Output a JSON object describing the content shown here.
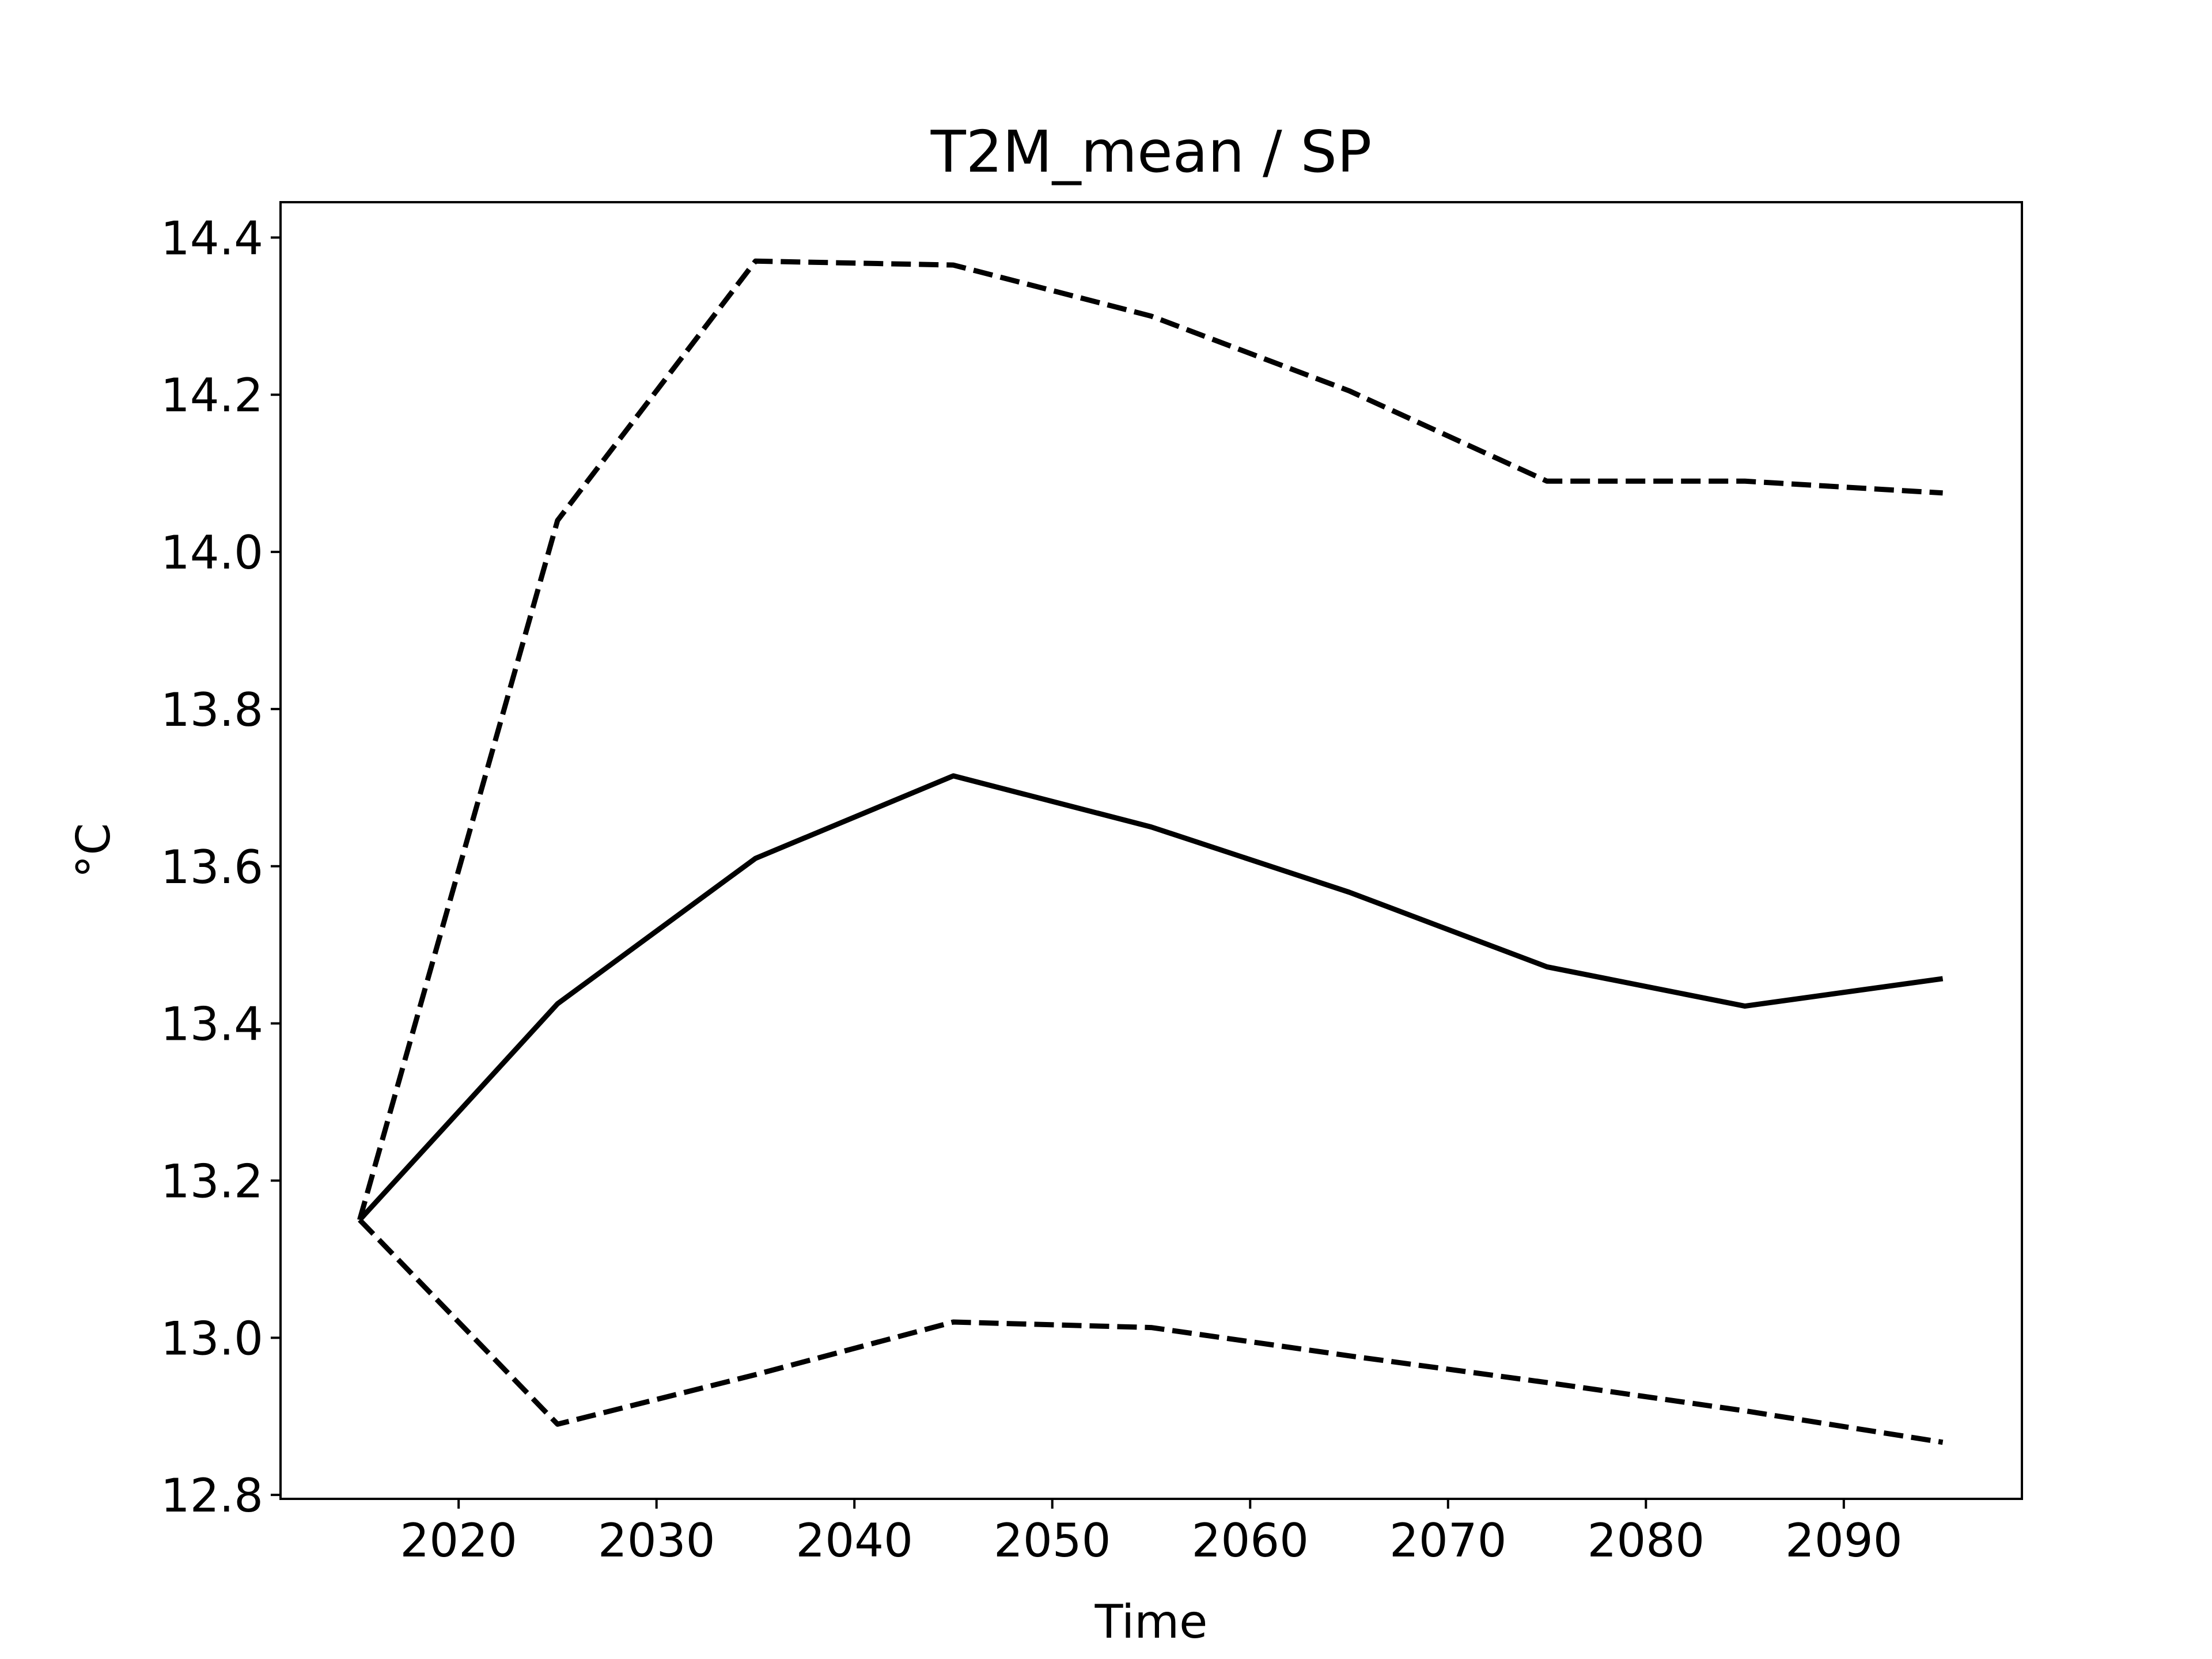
{
  "chart_data": {
    "type": "line",
    "title": "T2M_mean / SP",
    "xlabel": "Time",
    "ylabel": "°C",
    "xlim": [
      2011,
      2099
    ],
    "ylim": [
      12.795,
      14.445
    ],
    "xticks": [
      2020,
      2030,
      2040,
      2050,
      2060,
      2070,
      2080,
      2090
    ],
    "xtick_labels": [
      "2020",
      "2030",
      "2040",
      "2050",
      "2060",
      "2070",
      "2080",
      "2090"
    ],
    "yticks": [
      12.8,
      13.0,
      13.2,
      13.4,
      13.6,
      13.8,
      14.0,
      14.2,
      14.4
    ],
    "ytick_labels": [
      "12.8",
      "13.0",
      "13.2",
      "13.4",
      "13.6",
      "13.8",
      "14.0",
      "14.2",
      "14.4"
    ],
    "grid": false,
    "x": [
      2015,
      2025,
      2035,
      2045,
      2055,
      2065,
      2075,
      2085,
      2095
    ],
    "series": [
      {
        "style": "dashed",
        "color": "#000000",
        "values": [
          13.15,
          14.04,
          14.37,
          14.365,
          14.3,
          14.205,
          14.09,
          14.09,
          14.075
        ]
      },
      {
        "style": "solid",
        "color": "#000000",
        "values": [
          13.15,
          13.425,
          13.61,
          13.715,
          13.65,
          13.567,
          13.472,
          13.422,
          13.457
        ]
      },
      {
        "style": "dashed",
        "color": "#000000",
        "values": [
          13.15,
          12.89,
          12.953,
          13.02,
          13.013,
          12.977,
          12.943,
          12.907,
          12.867
        ]
      }
    ]
  }
}
